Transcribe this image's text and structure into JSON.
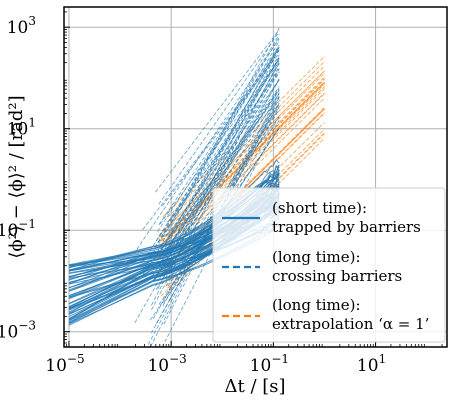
{
  "chart_data": {
    "type": "line",
    "xlabel": "Δt / [s]",
    "ylabel": "⟨ϕ²⟩ − ⟨ϕ⟩² / [rad²]",
    "x_scale": "log",
    "y_scale": "log",
    "xlim": [
      8e-06,
      250
    ],
    "ylim": [
      0.0005,
      2500
    ],
    "x_ticks": [
      {
        "base": "10",
        "exp": "−5",
        "value": 1e-05
      },
      {
        "base": "10",
        "exp": "−3",
        "value": 0.001
      },
      {
        "base": "10",
        "exp": "−1",
        "value": 0.1
      },
      {
        "base": "10",
        "exp": "1",
        "value": 10
      }
    ],
    "y_ticks": [
      {
        "base": "10",
        "exp": "−3",
        "value": 0.001
      },
      {
        "base": "10",
        "exp": "−1",
        "value": 0.1
      },
      {
        "base": "10",
        "exp": "1",
        "value": 10
      },
      {
        "base": "10",
        "exp": "3",
        "value": 1000
      }
    ],
    "grid": true,
    "legend_position": "lower-right",
    "series": [
      {
        "name": "(short time): trapped by barriers",
        "name_lines": [
          "(short time):",
          "trapped by barriers"
        ],
        "color": "#1f77b4",
        "line_style": "solid",
        "curve_count": 60,
        "x_range": [
          1e-05,
          0.13
        ],
        "y_start_range": [
          0.0012,
          0.022
        ],
        "y_end_range": [
          0.09,
          3
        ]
      },
      {
        "name": "(long time): crossing barriers",
        "name_lines": [
          "(long time):",
          "crossing barriers"
        ],
        "color": "#1f77b4",
        "line_style": "dashed",
        "curve_count": 60,
        "x_range": [
          0.0003,
          0.13
        ],
        "y_end_range": [
          10,
          1000
        ]
      },
      {
        "name": "(long time): extrapolation ‘α = 1’",
        "name_lines": [
          "(long time):",
          "extrapolation ‘α = 1’"
        ],
        "color": "#ff7f0e",
        "line_style": "dashed",
        "curve_count": 30,
        "x_range": [
          0.0005,
          1
        ],
        "y_end_range": [
          4,
          300
        ],
        "slope": 1
      }
    ]
  }
}
